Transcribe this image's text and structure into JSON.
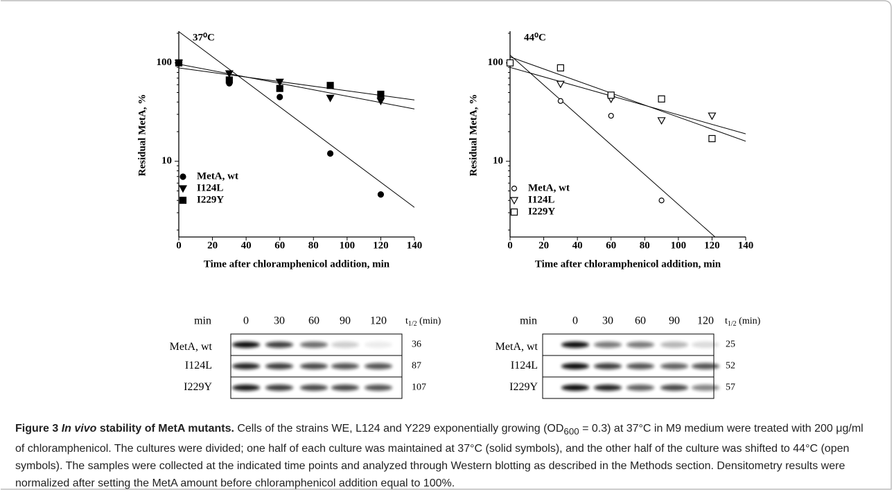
{
  "chart_data": [
    {
      "type": "scatter",
      "title": "37⁰C",
      "y_label": "Residual MetA, %",
      "x_label": "Time after chloramphenicol addition, min",
      "xlim": [
        0,
        140
      ],
      "xticks": [
        0,
        20,
        40,
        60,
        80,
        100,
        120,
        140
      ],
      "ylim": [
        1.7,
        210
      ],
      "yticks": [
        10,
        100
      ],
      "log_y": true,
      "filled": true,
      "series": [
        {
          "name": "MetA, wt",
          "marker": "circle",
          "color": "#000000",
          "x": [
            0,
            30,
            60,
            90,
            120
          ],
          "values": [
            100,
            62,
            45,
            12,
            4.6
          ]
        },
        {
          "name": "I124L",
          "marker": "triangle-down",
          "color": "#000000",
          "x": [
            0,
            30,
            60,
            90,
            120
          ],
          "values": [
            100,
            78,
            64,
            44,
            41
          ]
        },
        {
          "name": "I229Y",
          "marker": "square",
          "color": "#000000",
          "x": [
            0,
            30,
            60,
            90,
            120
          ],
          "values": [
            100,
            67,
            55,
            59,
            48
          ]
        }
      ],
      "fits": [
        {
          "x": [
            0,
            140
          ],
          "values": [
            208,
            3.4
          ]
        },
        {
          "x": [
            0,
            140
          ],
          "values": [
            97,
            34
          ]
        },
        {
          "x": [
            0,
            140
          ],
          "values": [
            89,
            42
          ]
        }
      ]
    },
    {
      "type": "scatter",
      "title": "44⁰C",
      "y_label": "Residual MetA, %",
      "x_label": "Time after chloramphenicol addition, min",
      "xlim": [
        0,
        140
      ],
      "xticks": [
        0,
        20,
        40,
        60,
        80,
        100,
        120,
        140
      ],
      "ylim": [
        1.7,
        210
      ],
      "yticks": [
        10,
        100
      ],
      "log_y": true,
      "filled": false,
      "series": [
        {
          "name": "MetA, wt",
          "marker": "circle",
          "color": "#000000",
          "x": [
            30,
            60,
            90
          ],
          "values": [
            41,
            29,
            4
          ]
        },
        {
          "name": "I124L",
          "marker": "triangle-down",
          "color": "#000000",
          "x": [
            30,
            60,
            90,
            120
          ],
          "values": [
            61,
            43,
            26,
            29
          ]
        },
        {
          "name": "I229Y",
          "marker": "square",
          "color": "#000000",
          "x": [
            0,
            30,
            60,
            90,
            120
          ],
          "values": [
            100,
            89,
            47,
            43,
            17
          ]
        }
      ],
      "fits": [
        {
          "x": [
            0,
            140
          ],
          "values": [
            120,
            0.9
          ]
        },
        {
          "x": [
            0,
            140
          ],
          "values": [
            90,
            19
          ]
        },
        {
          "x": [
            0,
            140
          ],
          "values": [
            115,
            16
          ]
        }
      ]
    }
  ],
  "blots": [
    {
      "unit": "min",
      "times": [
        0,
        30,
        60,
        90,
        120
      ],
      "t_half": {
        "t": "t",
        "sub": "1/2",
        "unit": " (min)"
      },
      "rows": [
        {
          "label": "MetA, wt",
          "half_life": 36
        },
        {
          "label": "I124L",
          "half_life": 87
        },
        {
          "label": "I229Y",
          "half_life": 107
        }
      ]
    },
    {
      "unit": "min",
      "times": [
        0,
        30,
        60,
        90,
        120
      ],
      "t_half": {
        "t": "t",
        "sub": "1/2",
        "unit": " (min)"
      },
      "rows": [
        {
          "label": "MetA, wt",
          "half_life": 25
        },
        {
          "label": "I124L",
          "half_life": 52
        },
        {
          "label": "I229Y",
          "half_life": 57
        }
      ]
    }
  ],
  "caption": {
    "figure": "Figure 3",
    "italic": "In vivo",
    "heading": " stability of MetA mutants.",
    "text_1": " Cells of the strains WE, L124 and Y229 exponentially growing (OD",
    "sub": "600",
    "text_2": " = 0.3) at 37°C in M9 medium were treated with 200 μg/ml of chloramphenicol. The cultures were divided; one half of each culture was maintained at 37°C (solid symbols), and the other half of the culture was shifted to 44°C (open symbols). The samples were collected at the indicated time points and analyzed through Western blotting as described in the Methods section. Densitometry results were normalized after setting the MetA amount before chloramphenicol addition equal to 100%."
  }
}
